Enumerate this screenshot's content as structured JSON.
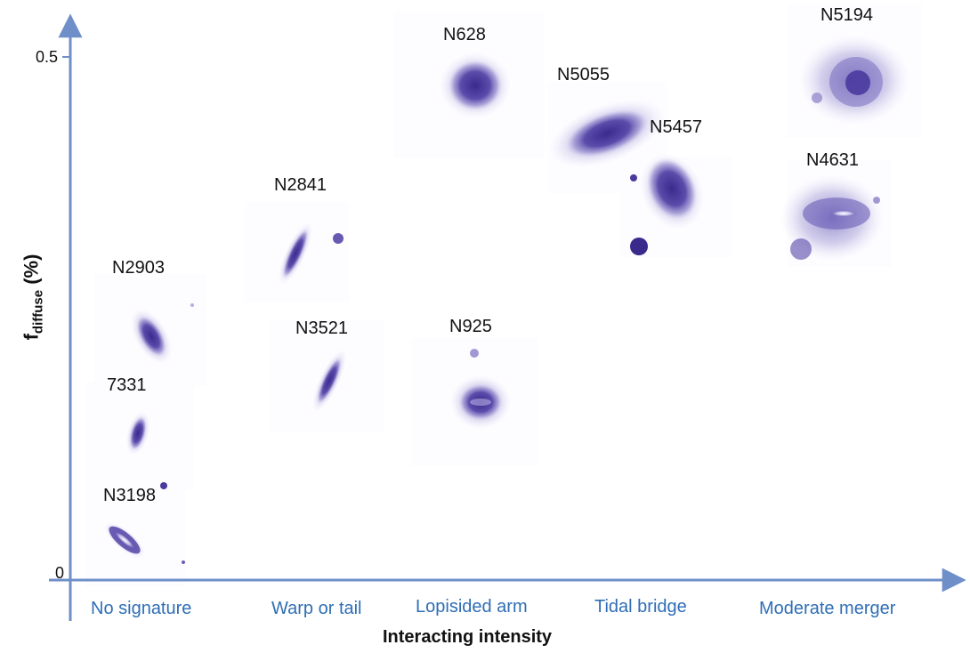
{
  "axes": {
    "x_title": "Interacting intensity",
    "y_title_main": "f",
    "y_title_sub": "diffuse",
    "y_title_unit": "(%)",
    "y_ticks": [
      "0.5",
      "0"
    ],
    "categories": [
      "No signature",
      "Warp or tail",
      "Lopisided arm",
      "Tidal bridge",
      "Moderate merger"
    ],
    "axis_color": "#6f8fc9",
    "category_color": "#2f6eb5"
  },
  "galaxies": [
    {
      "label": "N2903",
      "category": "No signature"
    },
    {
      "label": "7331",
      "category": "No signature"
    },
    {
      "label": "N3198",
      "category": "No signature"
    },
    {
      "label": "N2841",
      "category": "Warp or tail"
    },
    {
      "label": "N3521",
      "category": "Warp or tail"
    },
    {
      "label": "N628",
      "category": "Lopisided arm"
    },
    {
      "label": "N925",
      "category": "Lopisided arm"
    },
    {
      "label": "N5055",
      "category": "Tidal bridge"
    },
    {
      "label": "N5457",
      "category": "Tidal bridge"
    },
    {
      "label": "N5194",
      "category": "Moderate merger"
    },
    {
      "label": "N4631",
      "category": "Moderate merger"
    }
  ],
  "galaxy_color": "#4a3a9e"
}
